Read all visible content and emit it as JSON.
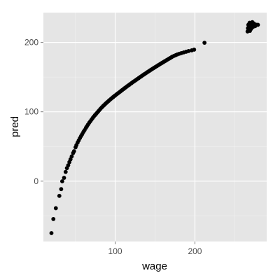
{
  "chart_data": {
    "type": "scatter",
    "title": "",
    "xlabel": "wage",
    "ylabel": "pred",
    "xlim": [
      10,
      290
    ],
    "ylim": [
      -87,
      243
    ],
    "x_ticks": [
      100,
      200
    ],
    "x_tick_labels": [
      "100",
      "200"
    ],
    "x_minor": [
      50,
      150,
      250
    ],
    "y_ticks": [
      0,
      100,
      200
    ],
    "y_tick_labels": [
      "0",
      "100",
      "200"
    ],
    "y_minor": [
      -50,
      50,
      150
    ],
    "grid": true,
    "legend": "none",
    "point_color": "#000000",
    "panel_background": "#e5e5e5",
    "grid_color": "#ffffff",
    "series": [
      {
        "x": [
          20.1,
          22.5,
          25.6,
          30.0,
          32.3,
          33.6,
          35.9,
          37.9,
          39.5,
          41.1,
          42.6,
          44.0,
          45.5,
          47.3,
          48.4,
          50.3,
          51.4,
          52.9,
          54.3,
          55.8,
          57.3,
          58.7,
          60.2,
          61.6,
          63.3,
          64.4,
          65.8,
          67.4,
          68.9,
          70.3,
          71.8,
          73.2,
          74.6,
          76.0,
          77.4,
          78.9,
          80.3,
          81.8,
          83.2,
          84.7,
          86.1,
          87.5,
          88.9,
          90.4,
          91.8,
          93.2,
          94.6,
          96.1,
          97.5,
          98.9,
          100.3,
          101.8,
          103.2,
          104.7,
          106.2,
          107.6,
          109.0,
          110.5,
          111.9,
          113.4,
          114.8,
          116.2,
          117.7,
          119.1,
          120.6,
          122.0,
          123.5,
          125.0,
          126.5,
          128.0,
          129.5,
          131.0,
          132.5,
          134.0,
          135.5,
          137.0,
          138.6,
          140.1,
          141.6,
          143.1,
          144.6,
          146.2,
          147.7,
          149.2,
          150.7,
          152.3,
          153.8,
          155.3,
          156.9,
          158.4,
          159.9,
          161.5,
          163.0,
          164.5,
          166.0,
          167.6,
          169.1,
          170.6,
          172.0,
          174.0,
          176.0,
          178.0,
          180.5,
          183.0,
          186.0,
          189.0,
          192.0,
          196.0,
          199.0,
          212.0,
          266.0,
          266.5,
          267.0,
          267.5,
          268.0,
          268.5,
          269.0,
          269.5,
          270.0,
          270.5,
          271.0,
          272.0,
          273.0,
          274.0,
          275.5,
          277.0,
          279.0
        ],
        "y": [
          -74.9,
          -54.6,
          -39.0,
          -21.2,
          -11.5,
          -0.2,
          4.8,
          13.3,
          18.8,
          22.9,
          27.5,
          31.5,
          35.7,
          40.6,
          43.1,
          48.8,
          52.0,
          55.6,
          58.7,
          62.1,
          65.1,
          67.8,
          71.0,
          73.5,
          76.8,
          78.8,
          81.3,
          84.1,
          86.4,
          88.6,
          91.1,
          93.1,
          95.1,
          96.9,
          98.7,
          100.8,
          102.6,
          104.6,
          106.3,
          108.1,
          109.6,
          111.2,
          112.8,
          114.2,
          115.7,
          117.1,
          118.5,
          119.9,
          121.2,
          122.6,
          123.8,
          125.2,
          126.4,
          127.7,
          129.0,
          130.3,
          131.5,
          132.8,
          134.1,
          135.3,
          136.6,
          137.8,
          139.0,
          140.2,
          141.4,
          142.6,
          143.8,
          145.0,
          146.2,
          147.4,
          148.6,
          149.8,
          151.0,
          152.2,
          153.4,
          154.5,
          155.7,
          156.9,
          158.1,
          159.2,
          160.3,
          161.5,
          162.6,
          163.7,
          164.8,
          165.9,
          167.0,
          168.1,
          169.2,
          170.3,
          171.3,
          172.4,
          173.4,
          174.5,
          175.5,
          176.6,
          177.6,
          178.7,
          179.7,
          180.7,
          181.7,
          182.7,
          183.7,
          184.6,
          185.6,
          186.6,
          187.6,
          188.6,
          189.6,
          199.5,
          215.8,
          220.6,
          225.4,
          218.7,
          223.5,
          228.3,
          216.7,
          221.6,
          226.4,
          219.6,
          224.4,
          229.2,
          222.5,
          227.3,
          223.5,
          225.4,
          225.4
        ]
      }
    ]
  }
}
